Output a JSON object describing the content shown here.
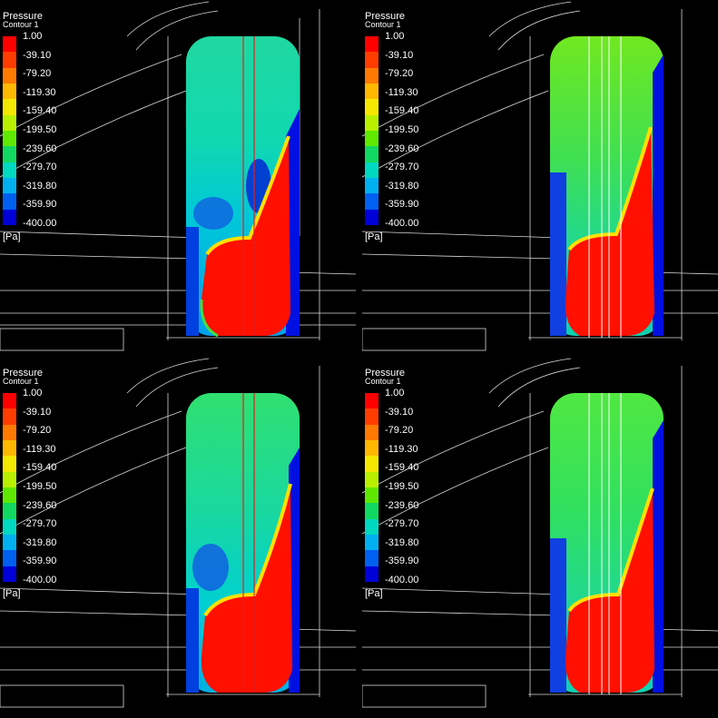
{
  "legend": {
    "title": "Pressure",
    "subtitle": "Contour 1",
    "ticks": [
      "1.00",
      "-39.10",
      "-79.20",
      "-119.30",
      "-159.40",
      "-199.50",
      "-239.60",
      "-279.70",
      "-319.80",
      "-359.90",
      "-400.00"
    ],
    "unit": "[Pa]",
    "colors": [
      "#ff0000",
      "#ff3d00",
      "#ff7a00",
      "#ffb800",
      "#f5e800",
      "#b8f000",
      "#5fe800",
      "#10d860",
      "#00d8c0",
      "#00b0f0",
      "#0060f0",
      "#0000d8"
    ]
  },
  "panels": [
    {
      "id": "top-left"
    },
    {
      "id": "top-right"
    },
    {
      "id": "bottom-left"
    },
    {
      "id": "bottom-right"
    }
  ]
}
